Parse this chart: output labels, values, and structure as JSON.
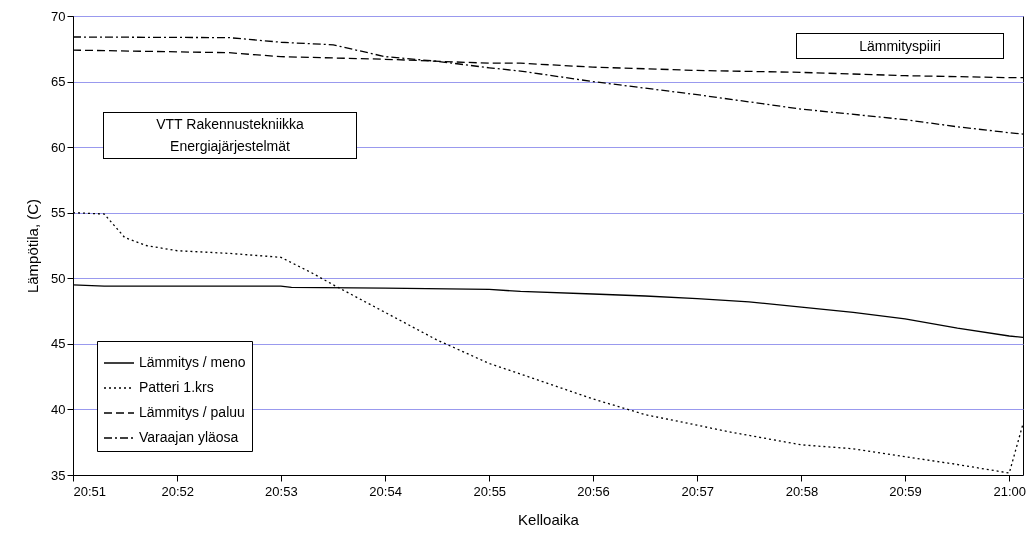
{
  "chart_data": {
    "type": "line",
    "xlabel": "Kelloaika",
    "ylabel": "Lämpötila, (C)",
    "xlim": [
      20.85,
      21.0022
    ],
    "ylim": [
      35,
      70
    ],
    "xticks": [
      {
        "value": 20.85,
        "label": "20:51"
      },
      {
        "value": 20.8667,
        "label": "20:52"
      },
      {
        "value": 20.8833,
        "label": "20:53"
      },
      {
        "value": 20.9,
        "label": "20:54"
      },
      {
        "value": 20.9167,
        "label": "20:55"
      },
      {
        "value": 20.9333,
        "label": "20:56"
      },
      {
        "value": 20.95,
        "label": "20:57"
      },
      {
        "value": 20.9667,
        "label": "20:58"
      },
      {
        "value": 20.9833,
        "label": "20:59"
      },
      {
        "value": 21.0,
        "label": "21:00"
      }
    ],
    "yticks": [
      35,
      40,
      45,
      50,
      55,
      60,
      65,
      70
    ],
    "grid": "y",
    "legend": "bottom left",
    "annotations": [
      "Lämmityspiiri",
      "VTT Rakennustekniikka\nEnergiajärjestelmät"
    ],
    "series": [
      {
        "name": "Lämmitys / meno",
        "color": "#000000",
        "line_style": "solid",
        "x": [
          20.85,
          20.855,
          20.8667,
          20.8833,
          20.885,
          20.9,
          20.91,
          20.9167,
          20.9217,
          20.9333,
          20.9417,
          20.95,
          20.9583,
          20.9667,
          20.975,
          20.9833,
          20.9917,
          21.0,
          21.0022
        ],
        "values": [
          49.5,
          49.4,
          49.4,
          49.4,
          49.3,
          49.25,
          49.2,
          49.15,
          49.0,
          48.8,
          48.65,
          48.45,
          48.2,
          47.8,
          47.4,
          46.9,
          46.2,
          45.6,
          45.5
        ]
      },
      {
        "name": "Patteri 1.krs",
        "color": "#000000",
        "line_style": "dotted",
        "x": [
          20.85,
          20.855,
          20.8583,
          20.8617,
          20.8667,
          20.875,
          20.8833,
          20.8883,
          20.8917,
          20.9,
          20.9083,
          20.9167,
          20.9217,
          20.9333,
          20.9417,
          20.95,
          20.955,
          20.9667,
          20.975,
          20.9833,
          20.9917,
          21.0,
          21.0022
        ],
        "values": [
          55.0,
          54.9,
          53.1,
          52.5,
          52.1,
          51.9,
          51.6,
          50.4,
          49.5,
          47.4,
          45.3,
          43.5,
          42.7,
          40.8,
          39.6,
          38.8,
          38.3,
          37.3,
          37.0,
          36.4,
          35.8,
          35.15,
          38.9
        ]
      },
      {
        "name": "Lämmitys / paluu",
        "color": "#000000",
        "line_style": "dashed",
        "x": [
          20.85,
          20.875,
          20.8833,
          20.9,
          20.9167,
          20.9217,
          20.9333,
          20.95,
          20.9667,
          20.9833,
          21.0,
          21.0022
        ],
        "values": [
          67.4,
          67.2,
          66.9,
          66.7,
          66.4,
          66.4,
          66.1,
          65.85,
          65.7,
          65.45,
          65.3,
          65.3
        ]
      },
      {
        "name": "Varaajan yläosa",
        "color": "#000000",
        "line_style": "dashdot",
        "x": [
          20.85,
          20.875,
          20.8833,
          20.8917,
          20.9,
          20.9083,
          20.9167,
          20.9217,
          20.9333,
          20.95,
          20.9667,
          20.9833,
          20.9917,
          21.0,
          21.0022
        ],
        "values": [
          68.4,
          68.35,
          68.0,
          67.8,
          66.9,
          66.55,
          66.05,
          65.8,
          65.0,
          64.0,
          62.9,
          62.1,
          61.55,
          61.1,
          61.0
        ]
      }
    ]
  }
}
